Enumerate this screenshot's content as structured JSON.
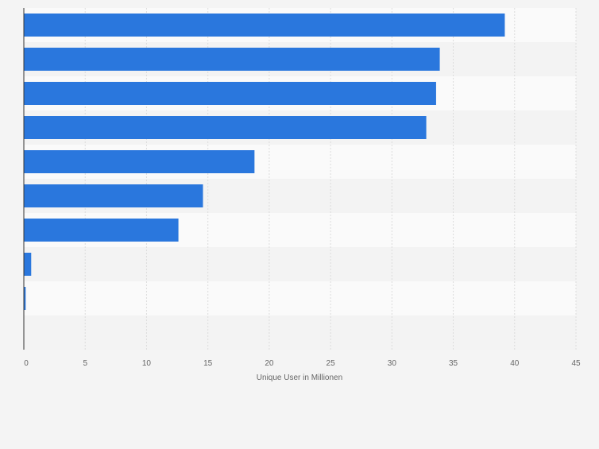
{
  "chart_data": {
    "type": "bar",
    "orientation": "horizontal",
    "categories": [
      "",
      "",
      "",
      "",
      "",
      "",
      "",
      "",
      "",
      ""
    ],
    "values": [
      39.2,
      33.9,
      33.6,
      32.8,
      18.8,
      14.6,
      12.6,
      0.6,
      0.15,
      0
    ],
    "title": "",
    "xlabel": "Unique User in Millionen",
    "ylabel": "",
    "xlim": [
      0,
      45
    ],
    "ticks": [
      0,
      5,
      10,
      15,
      20,
      25,
      30,
      35,
      40,
      45
    ],
    "grid": true,
    "legend": "none",
    "colors": {
      "bar": "#2a77dd",
      "band_light": "#fafafa",
      "band_dark": "#f3f3f3",
      "grid": "#dcdcdc",
      "axis": "#333333",
      "tick_text": "#666666"
    }
  }
}
